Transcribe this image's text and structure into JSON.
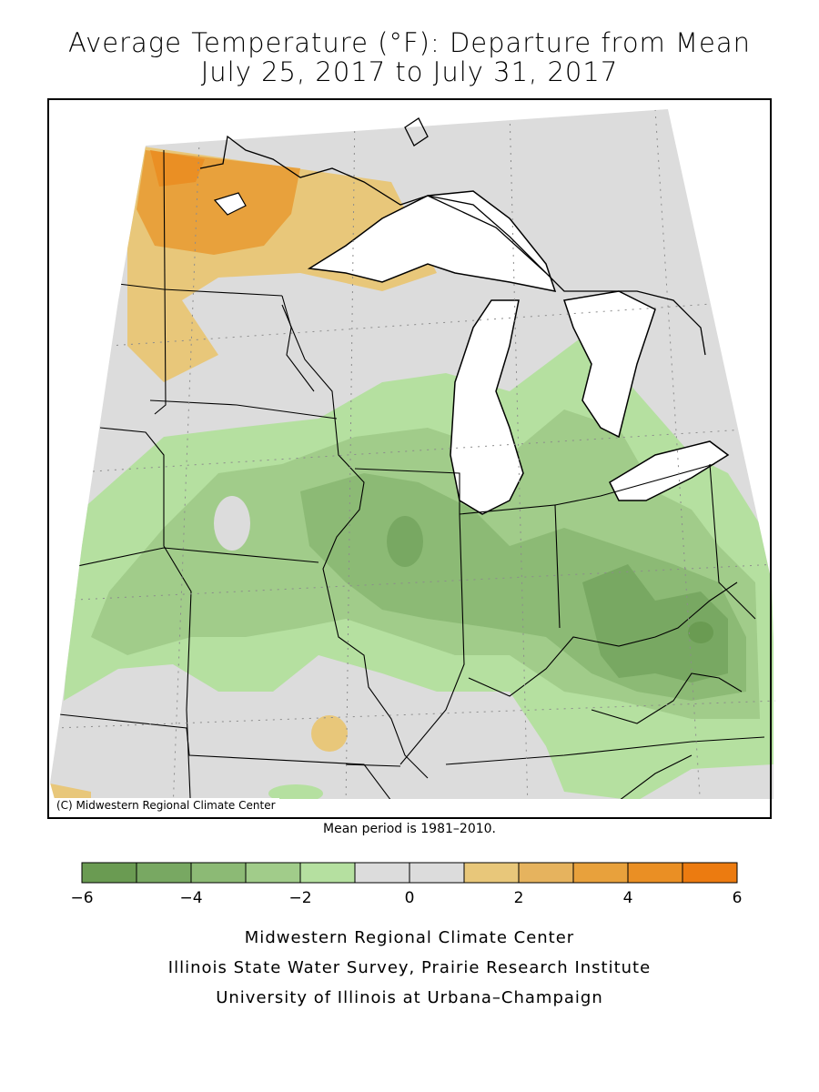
{
  "title_line1": "Average Temperature (°F): Departure from Mean",
  "title_line2": "July 25, 2017 to July 31, 2017",
  "map_credit": "(C) Midwestern Regional Climate Center",
  "mean_period": "Mean period is 1981–2010.",
  "legend": {
    "ticks": [
      "−6",
      "−4",
      "−2",
      "0",
      "2",
      "4",
      "6"
    ],
    "bins": [
      {
        "from": -6,
        "to": -5,
        "color": "#6a9b52"
      },
      {
        "from": -5,
        "to": -4,
        "color": "#78a862"
      },
      {
        "from": -4,
        "to": -3,
        "color": "#8cba75"
      },
      {
        "from": -3,
        "to": -2,
        "color": "#a1cc8a"
      },
      {
        "from": -2,
        "to": -1,
        "color": "#b5e0a0"
      },
      {
        "from": -1,
        "to": 0,
        "color": "#dcdcdc"
      },
      {
        "from": 0,
        "to": 1,
        "color": "#dcdcdc"
      },
      {
        "from": 1,
        "to": 2,
        "color": "#e8c77a"
      },
      {
        "from": 2,
        "to": 3,
        "color": "#e6b35e"
      },
      {
        "from": 3,
        "to": 4,
        "color": "#e8a13c"
      },
      {
        "from": 4,
        "to": 5,
        "color": "#ea8f24"
      },
      {
        "from": 5,
        "to": 6,
        "color": "#ec7b10"
      }
    ]
  },
  "footer": {
    "line1": "Midwestern Regional Climate Center",
    "line2": "Illinois State Water Survey, Prairie Research Institute",
    "line3": "University of Illinois at Urbana–Champaign"
  },
  "colors": {
    "lake": "#ffffff",
    "border": "#000000",
    "background": "#dcdcdc"
  }
}
